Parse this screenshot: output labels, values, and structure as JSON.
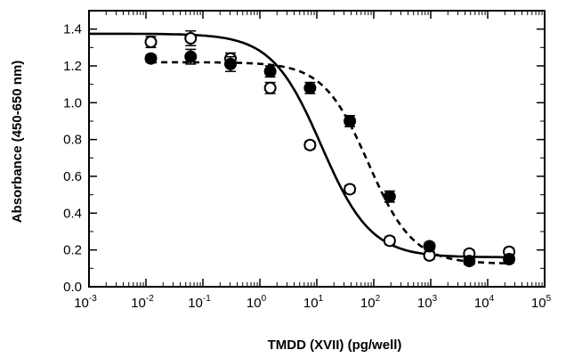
{
  "chart_data": {
    "type": "scatter",
    "title": "",
    "xlabel": "TMDD (XVII) (pg/well)",
    "ylabel": "Absorbance (450-650 nm)",
    "xscale": "log",
    "xlim": [
      0.001,
      100000
    ],
    "ylim": [
      0,
      1.5
    ],
    "x_ticks": [
      {
        "value": 0.001,
        "base": "10",
        "exp": "-3"
      },
      {
        "value": 0.01,
        "base": "10",
        "exp": "-2"
      },
      {
        "value": 0.1,
        "base": "10",
        "exp": "-1"
      },
      {
        "value": 1,
        "base": "10",
        "exp": "0"
      },
      {
        "value": 10,
        "base": "10",
        "exp": "1"
      },
      {
        "value": 100,
        "base": "10",
        "exp": "2"
      },
      {
        "value": 1000,
        "base": "10",
        "exp": "3"
      },
      {
        "value": 10000,
        "base": "10",
        "exp": "4"
      },
      {
        "value": 100000,
        "base": "10",
        "exp": "5"
      }
    ],
    "y_ticks": [
      {
        "value": 0.0,
        "label": "0.0"
      },
      {
        "value": 0.2,
        "label": "0.2"
      },
      {
        "value": 0.4,
        "label": "0.4"
      },
      {
        "value": 0.6,
        "label": "0.6"
      },
      {
        "value": 0.8,
        "label": "0.8"
      },
      {
        "value": 1.0,
        "label": "1.0"
      },
      {
        "value": 1.2,
        "label": "1.2"
      },
      {
        "value": 1.4,
        "label": "1.4"
      }
    ],
    "grid": false,
    "legend": "none",
    "series": [
      {
        "marker": "open-circle",
        "line": "solid",
        "color": "#000000",
        "x": [
          0.0122,
          0.061,
          0.305,
          1.52,
          7.6,
          38,
          190,
          950,
          4750,
          23750
        ],
        "y": [
          1.33,
          1.35,
          1.24,
          1.08,
          0.77,
          0.53,
          0.25,
          0.17,
          0.18,
          0.19
        ],
        "err": [
          0.03,
          0.04,
          0.03,
          0.03,
          0.02,
          0.02,
          0.02,
          0.02,
          0.02,
          0.02
        ],
        "fit": {
          "top": 1.375,
          "bottom": 0.16,
          "ec50": 12,
          "slope": 1.0
        }
      },
      {
        "marker": "filled-circle",
        "line": "dashed",
        "color": "#000000",
        "x": [
          0.0122,
          0.061,
          0.305,
          1.52,
          7.6,
          38,
          190,
          950,
          4750,
          23750
        ],
        "y": [
          1.24,
          1.25,
          1.21,
          1.17,
          1.08,
          0.9,
          0.49,
          0.22,
          0.14,
          0.15
        ],
        "err": [
          0.02,
          0.04,
          0.04,
          0.03,
          0.03,
          0.03,
          0.03,
          0.02,
          0.02,
          0.02
        ],
        "fit": {
          "top": 1.22,
          "bottom": 0.125,
          "ec50": 80,
          "slope": 1.1
        }
      }
    ]
  }
}
